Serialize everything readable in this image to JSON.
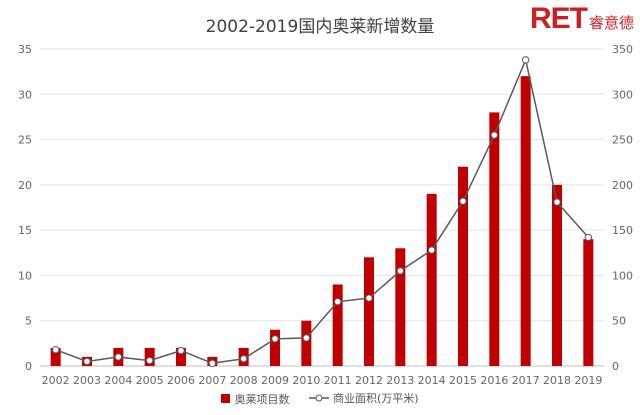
{
  "brand": {
    "logo": "RET",
    "sub": "睿意德"
  },
  "chart_data": {
    "type": "bar",
    "title": "2002-2019国内奥莱新增数量",
    "categories": [
      "2002",
      "2003",
      "2004",
      "2005",
      "2006",
      "2007",
      "2008",
      "2009",
      "2010",
      "2011",
      "2012",
      "2013",
      "2014",
      "2015",
      "2016",
      "2017",
      "2018",
      "2019"
    ],
    "series": [
      {
        "name": "奥莱项目数",
        "type": "bar",
        "axis": "left",
        "color": "#c00000",
        "values": [
          2,
          1,
          2,
          2,
          2,
          1,
          2,
          4,
          5,
          9,
          12,
          13,
          19,
          22,
          28,
          32,
          20,
          14
        ]
      },
      {
        "name": "商业面积(万平米)",
        "type": "line",
        "axis": "right",
        "color": "#595959",
        "values": [
          18,
          5,
          10,
          6,
          17,
          3,
          8,
          30,
          31,
          71,
          75,
          105,
          128,
          182,
          255,
          338,
          181,
          142
        ]
      }
    ],
    "ylim_left": [
      0,
      35
    ],
    "ylim_right": [
      0,
      350
    ],
    "yticks_left": [
      0,
      5,
      10,
      15,
      20,
      25,
      30,
      35
    ],
    "yticks_right": [
      0,
      50,
      100,
      150,
      200,
      250,
      300,
      350
    ],
    "grid": true,
    "legend": "bottom"
  }
}
